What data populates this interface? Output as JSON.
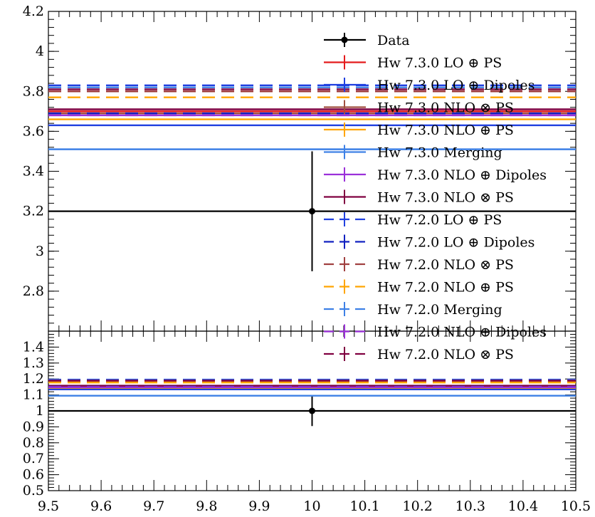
{
  "chart_data": [
    {
      "panel": "main",
      "type": "line",
      "xlim": [
        9.5,
        10.5
      ],
      "ylim": [
        2.6,
        4.2
      ],
      "y_ticks": [
        {
          "v": 2.8,
          "label": "2.8"
        },
        {
          "v": 3.0,
          "label": "3"
        },
        {
          "v": 3.2,
          "label": "3.2"
        },
        {
          "v": 3.4,
          "label": "3.4"
        },
        {
          "v": 3.6,
          "label": "3.6"
        },
        {
          "v": 3.8,
          "label": "3.8"
        },
        {
          "v": 4.0,
          "label": "4"
        },
        {
          "v": 4.2,
          "label": "4.2"
        }
      ],
      "x_ticks": [],
      "grid": false,
      "legend_position": "top-right",
      "series": [
        {
          "name": "Data",
          "style": "data",
          "color": "#000000",
          "x": [
            10.0
          ],
          "y": [
            3.2
          ],
          "yerr": [
            0.3
          ],
          "xrange": [
            9.5,
            10.5
          ]
        },
        {
          "name": "Hw 7.3.0 LO ⊕ PS",
          "style": "solid",
          "color": "#e41a1c",
          "xrange": [
            9.5,
            10.5
          ],
          "y": [
            3.7
          ]
        },
        {
          "name": "Hw 7.3.0 LO ⊕ Dipoles",
          "style": "solid",
          "color": "#1f3fe0",
          "xrange": [
            9.5,
            10.5
          ],
          "y": [
            3.63
          ]
        },
        {
          "name": "Hw 7.3.0 NLO ⊗ PS",
          "style": "solid",
          "color": "#a05040",
          "xrange": [
            9.5,
            10.5
          ],
          "y": [
            3.69
          ]
        },
        {
          "name": "Hw 7.3.0 NLO ⊕ PS",
          "style": "solid",
          "color": "#ffa500",
          "xrange": [
            9.5,
            10.5
          ],
          "y": [
            3.66
          ]
        },
        {
          "name": "Hw 7.3.0 Merging",
          "style": "solid",
          "color": "#3d80e6",
          "xrange": [
            9.5,
            10.5
          ],
          "y": [
            3.51
          ]
        },
        {
          "name": "Hw 7.3.0 NLO ⊕ Dipoles",
          "style": "solid",
          "color": "#9b30d9",
          "xrange": [
            9.5,
            10.5
          ],
          "y": [
            3.68
          ]
        },
        {
          "name": "Hw 7.3.0 NLO ⊗ PS",
          "style": "solid",
          "color": "#800040",
          "xrange": [
            9.5,
            10.5
          ],
          "y": [
            3.71
          ]
        },
        {
          "name": "Hw 7.2.0 LO ⊕ PS",
          "style": "dashed",
          "color": "#2040e0",
          "xrange": [
            9.5,
            10.5
          ],
          "y": [
            3.83
          ]
        },
        {
          "name": "Hw 7.2.0 LO ⊕ Dipoles",
          "style": "dashed",
          "color": "#1020c0",
          "xrange": [
            9.5,
            10.5
          ],
          "y": [
            3.69
          ]
        },
        {
          "name": "Hw 7.2.0 NLO ⊗ PS",
          "style": "dashed",
          "color": "#a04040",
          "xrange": [
            9.5,
            10.5
          ],
          "y": [
            3.8
          ]
        },
        {
          "name": "Hw 7.2.0 NLO ⊕ PS",
          "style": "dashed",
          "color": "#ffa500",
          "xrange": [
            9.5,
            10.5
          ],
          "y": [
            3.77
          ]
        },
        {
          "name": "Hw 7.2.0 Merging",
          "style": "dashed",
          "color": "#3d80e6",
          "xrange": [
            9.5,
            10.5
          ],
          "y": [
            3.82
          ]
        },
        {
          "name": "Hw 7.2.0 NLO ⊕ Dipoles",
          "style": "dashed",
          "color": "#9b30d9",
          "xrange": [
            9.5,
            10.5
          ],
          "y": [
            3.68
          ]
        },
        {
          "name": "Hw 7.2.0 NLO ⊗ PS",
          "style": "dashed",
          "color": "#800040",
          "xrange": [
            9.5,
            10.5
          ],
          "y": [
            3.81
          ]
        }
      ]
    },
    {
      "panel": "ratio",
      "type": "line",
      "xlim": [
        9.5,
        10.5
      ],
      "ylim": [
        0.5,
        1.5
      ],
      "y_ticks": [
        {
          "v": 0.5,
          "label": "0.5"
        },
        {
          "v": 0.6,
          "label": "0.6"
        },
        {
          "v": 0.7,
          "label": "0.7"
        },
        {
          "v": 0.8,
          "label": "0.8"
        },
        {
          "v": 0.9,
          "label": "0.9"
        },
        {
          "v": 1.0,
          "label": "1"
        },
        {
          "v": 1.1,
          "label": "1.1"
        },
        {
          "v": 1.2,
          "label": "1.2"
        },
        {
          "v": 1.3,
          "label": "1.3"
        },
        {
          "v": 1.4,
          "label": "1.4"
        }
      ],
      "x_ticks": [
        {
          "v": 9.5,
          "label": "9.5"
        },
        {
          "v": 9.6,
          "label": "9.6"
        },
        {
          "v": 9.7,
          "label": "9.7"
        },
        {
          "v": 9.8,
          "label": "9.8"
        },
        {
          "v": 9.9,
          "label": "9.9"
        },
        {
          "v": 10.0,
          "label": "10"
        },
        {
          "v": 10.1,
          "label": "10.1"
        },
        {
          "v": 10.2,
          "label": "10.2"
        },
        {
          "v": 10.3,
          "label": "10.3"
        },
        {
          "v": 10.4,
          "label": "10.4"
        },
        {
          "v": 10.5,
          "label": "10.5"
        }
      ],
      "grid": false,
      "series": [
        {
          "name": "Data",
          "style": "data",
          "color": "#000000",
          "x": [
            10.0
          ],
          "y": [
            1.0
          ],
          "yerr": [
            0.095
          ],
          "xrange": [
            9.5,
            10.5
          ]
        },
        {
          "name": "Hw 7.3.0 LO ⊕ PS",
          "style": "solid",
          "color": "#e41a1c",
          "xrange": [
            9.5,
            10.5
          ],
          "y": [
            1.155
          ]
        },
        {
          "name": "Hw 7.3.0 LO ⊕ Dipoles",
          "style": "solid",
          "color": "#1f3fe0",
          "xrange": [
            9.5,
            10.5
          ],
          "y": [
            1.135
          ]
        },
        {
          "name": "Hw 7.3.0 NLO ⊗ PS",
          "style": "solid",
          "color": "#a05040",
          "xrange": [
            9.5,
            10.5
          ],
          "y": [
            1.152
          ]
        },
        {
          "name": "Hw 7.3.0 NLO ⊕ PS",
          "style": "solid",
          "color": "#ffa500",
          "xrange": [
            9.5,
            10.5
          ],
          "y": [
            1.145
          ]
        },
        {
          "name": "Hw 7.3.0 Merging",
          "style": "solid",
          "color": "#3d80e6",
          "xrange": [
            9.5,
            10.5
          ],
          "y": [
            1.095
          ]
        },
        {
          "name": "Hw 7.3.0 NLO ⊕ Dipoles",
          "style": "solid",
          "color": "#9b30d9",
          "xrange": [
            9.5,
            10.5
          ],
          "y": [
            1.148
          ]
        },
        {
          "name": "Hw 7.3.0 NLO ⊗ PS",
          "style": "solid",
          "color": "#800040",
          "xrange": [
            9.5,
            10.5
          ],
          "y": [
            1.158
          ]
        },
        {
          "name": "Hw 7.2.0 LO ⊕ PS",
          "style": "dashed",
          "color": "#2040e0",
          "xrange": [
            9.5,
            10.5
          ],
          "y": [
            1.196
          ]
        },
        {
          "name": "Hw 7.2.0 LO ⊕ Dipoles",
          "style": "dashed",
          "color": "#1020c0",
          "xrange": [
            9.5,
            10.5
          ],
          "y": [
            1.152
          ]
        },
        {
          "name": "Hw 7.2.0 NLO ⊗ PS",
          "style": "dashed",
          "color": "#a04040",
          "xrange": [
            9.5,
            10.5
          ],
          "y": [
            1.187
          ]
        },
        {
          "name": "Hw 7.2.0 NLO ⊕ PS",
          "style": "dashed",
          "color": "#ffa500",
          "xrange": [
            9.5,
            10.5
          ],
          "y": [
            1.178
          ]
        },
        {
          "name": "Hw 7.2.0 Merging",
          "style": "dashed",
          "color": "#3d80e6",
          "xrange": [
            9.5,
            10.5
          ],
          "y": [
            1.193
          ]
        },
        {
          "name": "Hw 7.2.0 NLO ⊕ Dipoles",
          "style": "dashed",
          "color": "#9b30d9",
          "xrange": [
            9.5,
            10.5
          ],
          "y": [
            1.15
          ]
        },
        {
          "name": "Hw 7.2.0 NLO ⊗ PS",
          "style": "dashed",
          "color": "#800040",
          "xrange": [
            9.5,
            10.5
          ],
          "y": [
            1.19
          ]
        }
      ]
    }
  ]
}
